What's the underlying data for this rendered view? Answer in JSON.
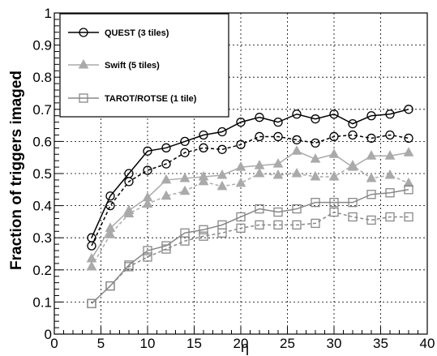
{
  "chart_data": {
    "type": "line",
    "xlabel": "η",
    "ylabel": "Fraction of triggers imaged",
    "xlim": [
      0,
      40
    ],
    "ylim": [
      0,
      1
    ],
    "grid": true,
    "legend_position": "top-left",
    "x_ticks": [
      "0",
      "5",
      "10",
      "15",
      "20",
      "25",
      "30",
      "35",
      "40"
    ],
    "y_ticks": [
      "0",
      "0.1",
      "0.2",
      "0.3",
      "0.4",
      "0.5",
      "0.6",
      "0.7",
      "0.8",
      "0.9",
      "1"
    ],
    "x": [
      4,
      6,
      8,
      10,
      12,
      14,
      16,
      18,
      20,
      22,
      24,
      26,
      28,
      30,
      32,
      34,
      36,
      38
    ],
    "series": [
      {
        "name": "QUEST (3 tiles)",
        "color": "#000000",
        "marker": "circle",
        "solid_values": [
          0.3,
          0.43,
          0.5,
          0.57,
          0.58,
          0.6,
          0.62,
          0.63,
          0.66,
          0.675,
          0.66,
          0.685,
          0.67,
          0.685,
          0.655,
          0.68,
          0.685,
          0.7
        ],
        "dashed_values": [
          0.275,
          0.4,
          0.475,
          0.51,
          0.53,
          0.565,
          0.58,
          0.575,
          0.59,
          0.615,
          0.615,
          0.605,
          0.595,
          0.615,
          0.62,
          0.61,
          0.62,
          0.61
        ]
      },
      {
        "name": "Swift (5 tiles)",
        "color": "#aaaaaa",
        "marker": "triangle",
        "solid_values": [
          0.235,
          0.33,
          0.385,
          0.425,
          0.48,
          0.485,
          0.49,
          0.495,
          0.52,
          0.525,
          0.53,
          0.57,
          0.545,
          0.56,
          0.52,
          0.555,
          0.555,
          0.565
        ],
        "dashed_values": [
          0.21,
          0.31,
          0.375,
          0.405,
          0.43,
          0.445,
          0.475,
          0.46,
          0.47,
          0.5,
          0.495,
          0.5,
          0.49,
          0.49,
          0.525,
          0.485,
          0.495,
          0.47
        ]
      },
      {
        "name": "TAROT/ROTSE (1 tile)",
        "color": "#888888",
        "marker": "square",
        "solid_values": [
          0.095,
          0.15,
          0.215,
          0.26,
          0.275,
          0.315,
          0.325,
          0.34,
          0.365,
          0.39,
          0.38,
          0.39,
          0.41,
          0.41,
          0.41,
          0.435,
          0.44,
          0.45
        ],
        "dashed_values": [
          0.095,
          0.15,
          0.21,
          0.24,
          0.265,
          0.29,
          0.305,
          0.315,
          0.33,
          0.34,
          0.34,
          0.34,
          0.345,
          0.38,
          0.365,
          0.355,
          0.365,
          0.365
        ]
      }
    ]
  }
}
